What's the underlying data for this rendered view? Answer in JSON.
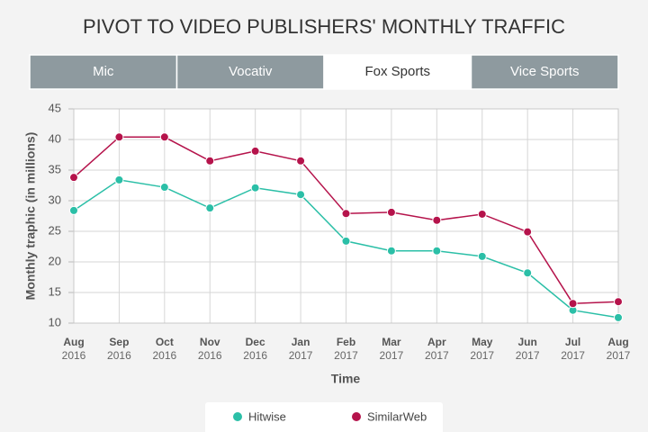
{
  "chart_data": {
    "type": "line",
    "title": "PIVOT TO VIDEO PUBLISHERS' MONTHLY TRAFFIC",
    "tabs": [
      "Mic",
      "Vocativ",
      "Fox Sports",
      "Vice Sports"
    ],
    "active_tab": 2,
    "x_label": "Time",
    "y_label": "Monthly traphic (in millions)",
    "categories": [
      "Aug 2016",
      "Sep 2016",
      "Oct 2016",
      "Nov 2016",
      "Dec 2016",
      "Jan 2017",
      "Feb 2017",
      "Mar 2017",
      "Apr 2017",
      "May 2017",
      "Jun 2017",
      "Jul 2017",
      "Aug 2017"
    ],
    "series": [
      {
        "name": "Hitwise",
        "color": "#2bbfa7",
        "values": [
          28.4,
          33.4,
          32.2,
          28.8,
          32.1,
          31.0,
          23.4,
          21.8,
          21.8,
          20.9,
          18.2,
          12.1,
          10.9
        ]
      },
      {
        "name": "SimilarWeb",
        "color": "#b5134b",
        "values": [
          33.8,
          40.4,
          40.4,
          36.5,
          38.1,
          36.5,
          27.9,
          28.1,
          26.8,
          27.8,
          24.9,
          13.2,
          13.5
        ]
      }
    ],
    "ylim": [
      10,
      45
    ],
    "yticks": [
      10,
      15,
      20,
      25,
      30,
      35,
      40,
      45
    ],
    "grid": true
  }
}
